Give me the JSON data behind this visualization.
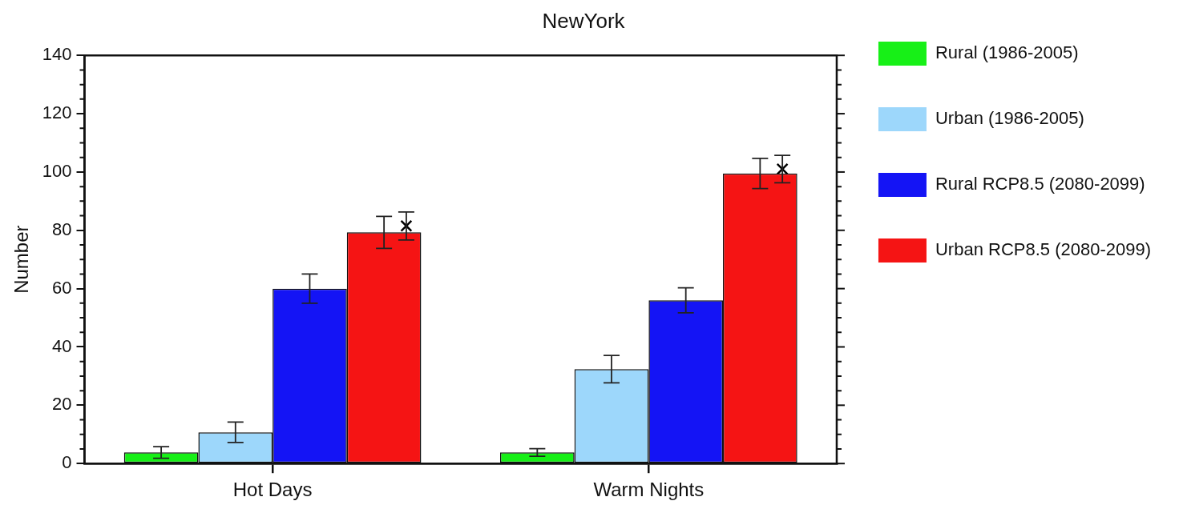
{
  "chart_data": {
    "type": "bar",
    "title": "NewYork",
    "ylabel": "Number",
    "categories": [
      "Hot Days",
      "Warm Nights"
    ],
    "series": [
      {
        "name": "Rural (1986-2005)",
        "color": "#17f017",
        "values": [
          3.8,
          3.8
        ],
        "errors": [
          2,
          1.3
        ]
      },
      {
        "name": "Urban (1986-2005)",
        "color": "#9dd7fb",
        "values": [
          10.7,
          32.4
        ],
        "errors": [
          3.5,
          4.7
        ]
      },
      {
        "name": "Rural RCP8.5 (2080-2099)",
        "color": "#1414f5",
        "values": [
          60,
          56
        ],
        "errors": [
          5,
          4.3
        ]
      },
      {
        "name": "Urban RCP8.5 (2080-2099)",
        "color": "#f51414",
        "values": [
          79.3,
          99.5
        ],
        "errors": [
          5.5,
          5.2
        ]
      },
      {
        "type": "scatter",
        "color": "#000000",
        "marker": "cross",
        "x": [
          "Hot Days",
          "Warm Nights"
        ],
        "values": [
          81.5,
          101
        ],
        "errors": [
          4.8,
          4.7
        ]
      }
    ],
    "ylim": [
      0,
      140
    ],
    "yticks": [
      0,
      20,
      40,
      60,
      80,
      100,
      120,
      140
    ],
    "legend": "right"
  }
}
